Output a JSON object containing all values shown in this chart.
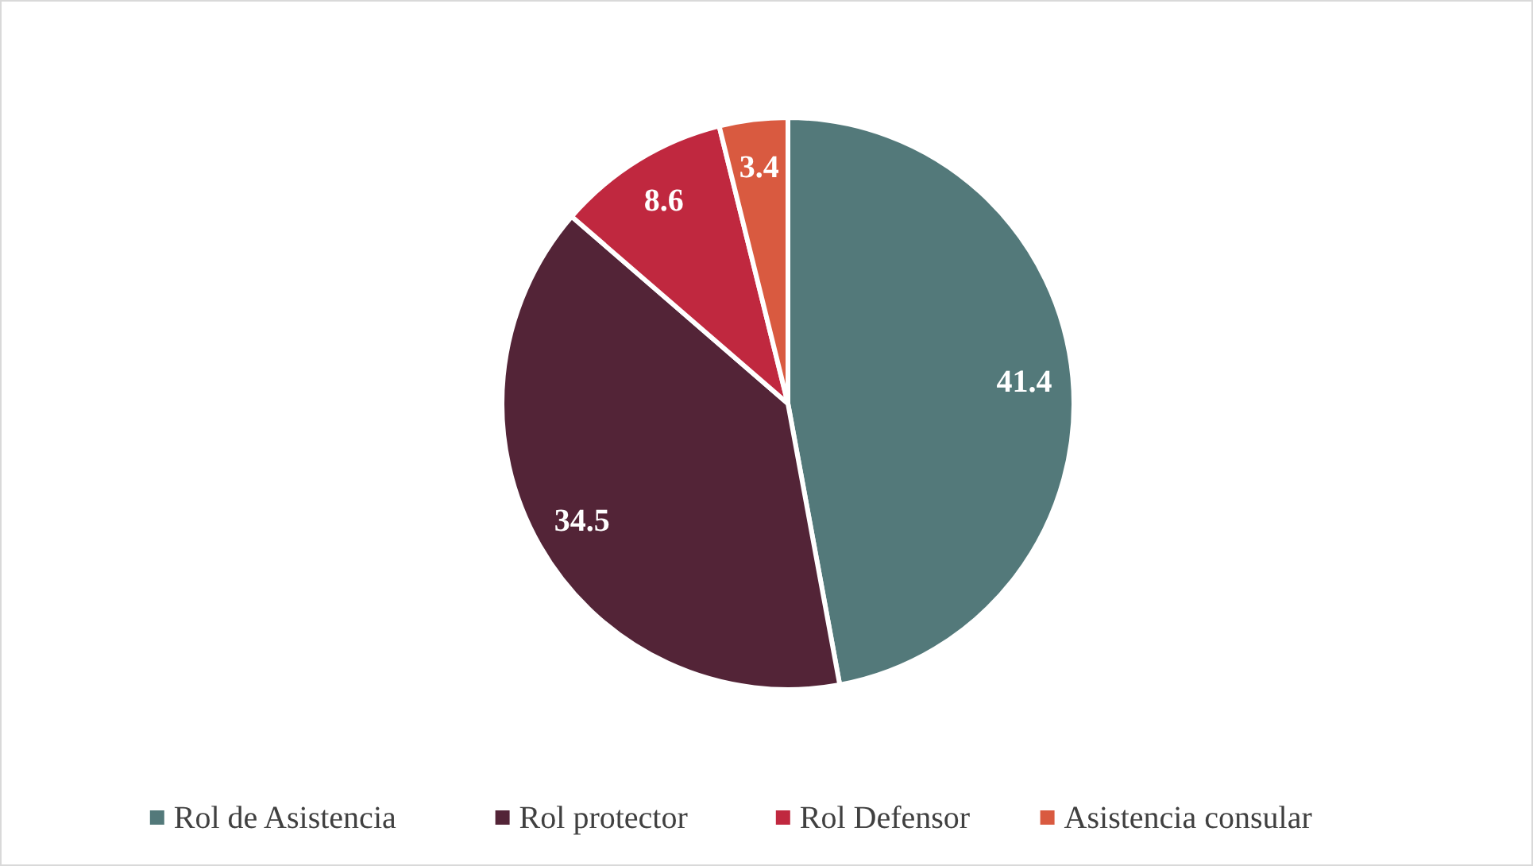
{
  "chart_data": {
    "type": "pie",
    "categories": [
      "Rol de Asistencia",
      "Rol protector",
      "Rol Defensor",
      "Asistencia consular"
    ],
    "values": [
      41.4,
      34.5,
      8.6,
      3.4
    ],
    "colors": [
      "#53797a",
      "#532437",
      "#c0283f",
      "#d95a40"
    ],
    "data_labels": true,
    "legend": "bottom"
  }
}
